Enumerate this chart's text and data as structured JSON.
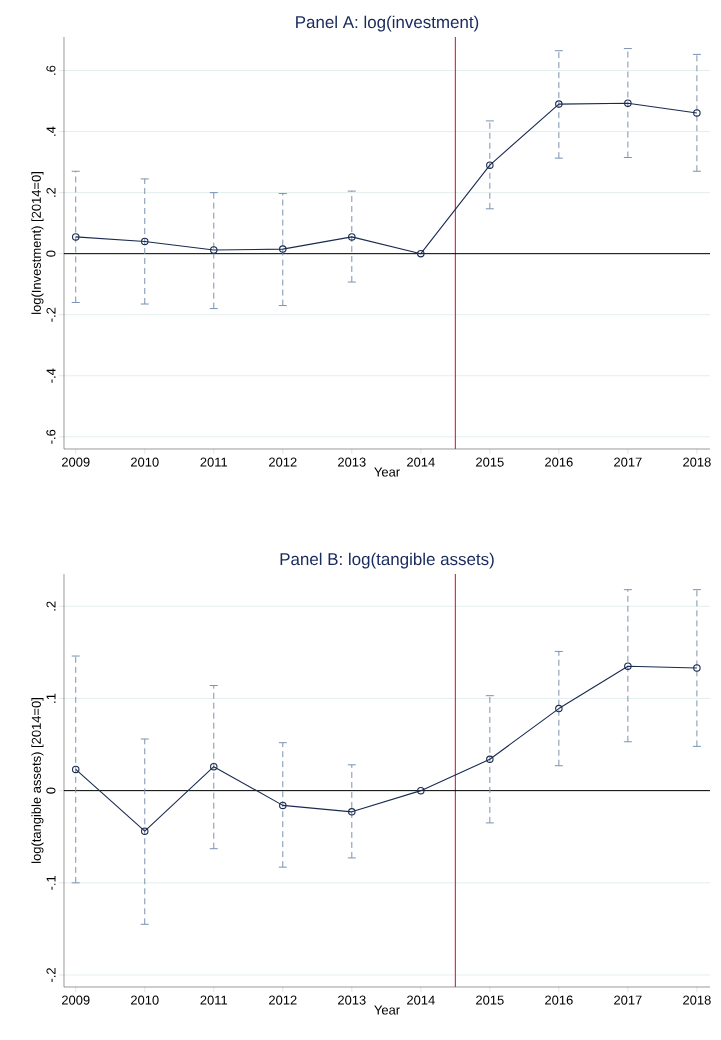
{
  "chart_data": [
    {
      "type": "line",
      "title": "Panel A: log(investment)",
      "xlabel": "Year",
      "ylabel": "log(Investment) [2014=0]",
      "x": [
        2009,
        2010,
        2011,
        2012,
        2013,
        2014,
        2015,
        2016,
        2017,
        2018
      ],
      "series": [
        {
          "color": "#1a2b50",
          "values": [
            0.055,
            0.04,
            0.012,
            0.015,
            0.055,
            0,
            0.29,
            0.49,
            0.493,
            0.461
          ],
          "errors": [
            [
              -0.16,
              0.27
            ],
            [
              -0.165,
              0.245
            ],
            [
              -0.18,
              0.2
            ],
            [
              -0.17,
              0.197
            ],
            [
              -0.093,
              0.205
            ],
            null,
            [
              0.147,
              0.435
            ],
            [
              0.313,
              0.665
            ],
            [
              0.315,
              0.672
            ],
            [
              0.27,
              0.653
            ]
          ]
        }
      ],
      "marker": "circle",
      "line_style": "solid",
      "grid": "y",
      "ref_lines": [
        {
          "axis": "x",
          "value": 2014.5,
          "color": "#c8102e"
        },
        {
          "axis": "y",
          "value": 0,
          "color": "#000000"
        }
      ],
      "xlim": [
        2008.83,
        2018.19
      ],
      "ylim": [
        -0.64,
        0.71
      ],
      "xticks": [
        2009,
        2010,
        2011,
        2012,
        2013,
        2014,
        2015,
        2016,
        2017,
        2018
      ],
      "yticks": [
        {
          "value": -0.6,
          "label": "-.6"
        },
        {
          "value": -0.4,
          "label": "-.4"
        },
        {
          "value": -0.2,
          "label": "-.2"
        },
        0,
        {
          "value": 0.2,
          "label": ".2"
        },
        {
          "value": 0.4,
          "label": ".4"
        },
        {
          "value": 0.6,
          "label": ".6"
        }
      ]
    },
    {
      "type": "line",
      "title": "Panel B: log(tangible assets)",
      "xlabel": "Year",
      "ylabel": "log(tangible assets) [2014=0]",
      "x": [
        2009,
        2010,
        2011,
        2012,
        2013,
        2014,
        2015,
        2016,
        2017,
        2018
      ],
      "series": [
        {
          "color": "#1a2b50",
          "values": [
            0.023,
            -0.044,
            0.026,
            -0.016,
            -0.023,
            0,
            0.034,
            0.089,
            0.135,
            0.133
          ],
          "errors": [
            [
              -0.1,
              0.146
            ],
            [
              -0.145,
              0.056
            ],
            [
              -0.063,
              0.114
            ],
            [
              -0.083,
              0.052
            ],
            [
              -0.073,
              0.028
            ],
            null,
            [
              -0.035,
              0.103
            ],
            [
              0.027,
              0.151
            ],
            [
              0.053,
              0.218
            ],
            [
              0.048,
              0.218
            ]
          ]
        }
      ],
      "marker": "circle",
      "line_style": "solid",
      "grid": "y",
      "ref_lines": [
        {
          "axis": "x",
          "value": 2014.5,
          "color": "#c8102e"
        },
        {
          "axis": "y",
          "value": 0,
          "color": "#000000"
        }
      ],
      "xlim": [
        2008.83,
        2018.19
      ],
      "ylim": [
        -0.213,
        0.235
      ],
      "xticks": [
        2009,
        2010,
        2011,
        2012,
        2013,
        2014,
        2015,
        2016,
        2017,
        2018
      ],
      "yticks": [
        {
          "value": -0.2,
          "label": "-.2"
        },
        {
          "value": -0.1,
          "label": "-.1"
        },
        0,
        {
          "value": 0.1,
          "label": ".1"
        },
        {
          "value": 0.2,
          "label": ".2"
        }
      ]
    }
  ]
}
